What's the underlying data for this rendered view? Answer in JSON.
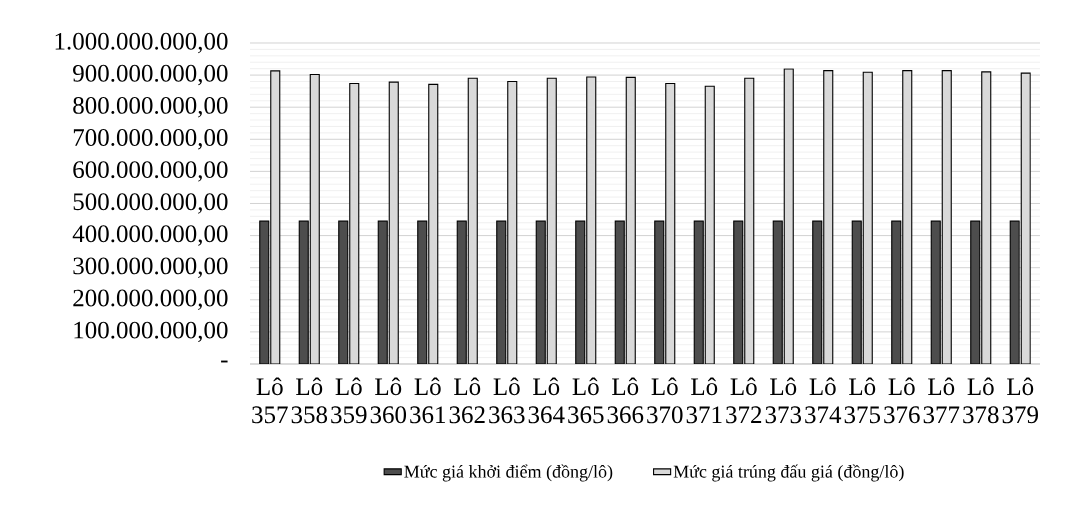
{
  "chart_data": {
    "type": "bar",
    "categories": [
      "Lô 357",
      "Lô 358",
      "Lô 359",
      "Lô 360",
      "Lô 361",
      "Lô 362",
      "Lô 363",
      "Lô 364",
      "Lô 365",
      "Lô 366",
      "Lô 370",
      "Lô 371",
      "Lô 372",
      "Lô 373",
      "Lô 374",
      "Lô 375",
      "Lô 376",
      "Lô 377",
      "Lô 378",
      "Lô 379"
    ],
    "series": [
      {
        "name": "Mức giá khởi điểm (đồng/lô)",
        "color": "#4d4d4d",
        "values": [
          445000000,
          445000000,
          445000000,
          445000000,
          445000000,
          445000000,
          445000000,
          445000000,
          445000000,
          445000000,
          445000000,
          445000000,
          445000000,
          445000000,
          445000000,
          445000000,
          445000000,
          445000000,
          445000000,
          445000000
        ]
      },
      {
        "name": "Mức giá trúng đấu giá (đồng/lô)",
        "color": "#d9d9d9",
        "values": [
          913000000,
          902000000,
          874000000,
          878000000,
          871000000,
          890000000,
          880000000,
          890000000,
          894000000,
          893000000,
          874000000,
          865000000,
          890000000,
          919000000,
          914000000,
          909000000,
          914000000,
          914000000,
          910000000,
          906000000
        ]
      }
    ],
    "ylim": [
      0,
      1000000000
    ],
    "yticks": [
      {
        "value": 0,
        "label": "-"
      },
      {
        "value": 100000000,
        "label": "100.000.000,00"
      },
      {
        "value": 200000000,
        "label": "200.000.000,00"
      },
      {
        "value": 300000000,
        "label": "300.000.000,00"
      },
      {
        "value": 400000000,
        "label": "400.000.000,00"
      },
      {
        "value": 500000000,
        "label": "500.000.000,00"
      },
      {
        "value": 600000000,
        "label": "600.000.000,00"
      },
      {
        "value": 700000000,
        "label": "700.000.000,00"
      },
      {
        "value": 800000000,
        "label": "800.000.000,00"
      },
      {
        "value": 900000000,
        "label": "900.000.000,00"
      },
      {
        "value": 1000000000,
        "label": "1.000.000.000,00"
      }
    ],
    "grid": true,
    "legend": "bottom"
  }
}
